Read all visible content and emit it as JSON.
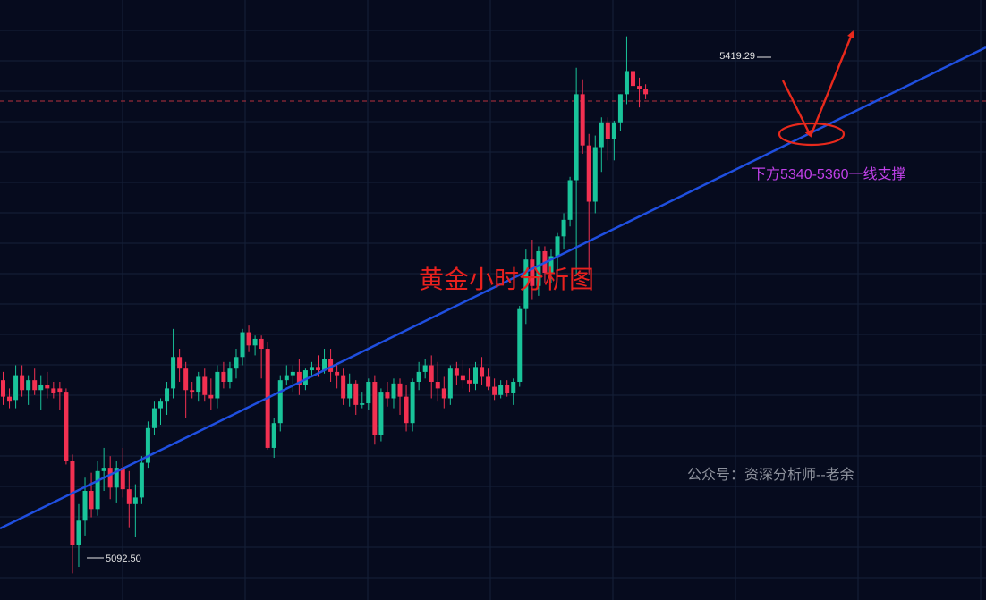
{
  "chart_data": {
    "type": "candlestick",
    "title": "黄金小时分析图",
    "annotation": "下方5340-5360一线支撑",
    "watermark_text": "公众号：资深分析师--老余",
    "max_label": "5419.29",
    "min_label": "5092.50",
    "ylim": [
      5078,
      5441
    ],
    "reference_price": 5391,
    "colors": {
      "background": "#060b1e",
      "grid": "#152039",
      "up": "#19c49a",
      "down": "#f23051",
      "trendline": "#1f4fe0",
      "arrows": "#e8291c",
      "reference_line": "#b8323f",
      "title": "#e8211e",
      "annotation": "#c040e8",
      "watermark": "#8d919c"
    },
    "candles": [
      [
        5211,
        5216,
        5196,
        5201
      ],
      [
        5201,
        5206,
        5194,
        5198
      ],
      [
        5199,
        5220,
        5194,
        5214
      ],
      [
        5214,
        5220,
        5201,
        5205
      ],
      [
        5205,
        5214,
        5196,
        5211
      ],
      [
        5211,
        5218,
        5202,
        5205
      ],
      [
        5205,
        5214,
        5193,
        5208
      ],
      [
        5208,
        5216,
        5200,
        5206
      ],
      [
        5206,
        5210,
        5200,
        5203
      ],
      [
        5206,
        5210,
        5193,
        5204
      ],
      [
        5204,
        5206,
        5160,
        5162
      ],
      [
        5162,
        5166,
        5094,
        5111
      ],
      [
        5111,
        5136,
        5098,
        5126
      ],
      [
        5126,
        5152,
        5117,
        5144
      ],
      [
        5144,
        5155,
        5128,
        5133
      ],
      [
        5133,
        5162,
        5129,
        5156
      ],
      [
        5156,
        5170,
        5144,
        5158
      ],
      [
        5158,
        5165,
        5139,
        5146
      ],
      [
        5146,
        5162,
        5137,
        5158
      ],
      [
        5158,
        5170,
        5140,
        5145
      ],
      [
        5145,
        5156,
        5122,
        5136
      ],
      [
        5136,
        5148,
        5116,
        5140
      ],
      [
        5140,
        5165,
        5136,
        5161
      ],
      [
        5161,
        5186,
        5158,
        5182
      ],
      [
        5182,
        5198,
        5178,
        5194
      ],
      [
        5194,
        5200,
        5184,
        5198
      ],
      [
        5198,
        5210,
        5190,
        5206
      ],
      [
        5206,
        5242,
        5200,
        5225
      ],
      [
        5225,
        5230,
        5210,
        5218
      ],
      [
        5218,
        5222,
        5188,
        5205
      ],
      [
        5205,
        5210,
        5200,
        5204
      ],
      [
        5204,
        5216,
        5198,
        5213
      ],
      [
        5213,
        5218,
        5198,
        5202
      ],
      [
        5202,
        5212,
        5193,
        5200
      ],
      [
        5200,
        5220,
        5194,
        5216
      ],
      [
        5216,
        5222,
        5206,
        5210
      ],
      [
        5210,
        5222,
        5206,
        5218
      ],
      [
        5218,
        5230,
        5212,
        5225
      ],
      [
        5225,
        5242,
        5220,
        5240
      ],
      [
        5240,
        5244,
        5228,
        5232
      ],
      [
        5232,
        5238,
        5226,
        5236
      ],
      [
        5236,
        5238,
        5212,
        5230
      ],
      [
        5230,
        5234,
        5169,
        5170
      ],
      [
        5170,
        5188,
        5164,
        5185
      ],
      [
        5185,
        5214,
        5180,
        5211
      ],
      [
        5211,
        5220,
        5208,
        5214
      ],
      [
        5214,
        5220,
        5204,
        5216
      ],
      [
        5216,
        5224,
        5202,
        5208
      ],
      [
        5208,
        5218,
        5205,
        5217
      ],
      [
        5217,
        5222,
        5214,
        5219
      ],
      [
        5219,
        5226,
        5213,
        5217
      ],
      [
        5217,
        5230,
        5215,
        5224
      ],
      [
        5224,
        5230,
        5210,
        5216
      ],
      [
        5216,
        5220,
        5206,
        5214
      ],
      [
        5214,
        5218,
        5196,
        5200
      ],
      [
        5200,
        5215,
        5195,
        5209
      ],
      [
        5209,
        5211,
        5190,
        5196
      ],
      [
        5196,
        5204,
        5194,
        5197
      ],
      [
        5197,
        5212,
        5193,
        5210
      ],
      [
        5210,
        5214,
        5172,
        5178
      ],
      [
        5178,
        5206,
        5174,
        5204
      ],
      [
        5204,
        5210,
        5195,
        5200
      ],
      [
        5200,
        5212,
        5194,
        5209
      ],
      [
        5209,
        5212,
        5190,
        5201
      ],
      [
        5201,
        5208,
        5180,
        5185
      ],
      [
        5185,
        5212,
        5180,
        5210
      ],
      [
        5210,
        5222,
        5205,
        5216
      ],
      [
        5216,
        5224,
        5212,
        5220
      ],
      [
        5220,
        5226,
        5200,
        5210
      ],
      [
        5210,
        5222,
        5198,
        5206
      ],
      [
        5206,
        5213,
        5194,
        5200
      ],
      [
        5200,
        5220,
        5196,
        5218
      ],
      [
        5218,
        5222,
        5208,
        5214
      ],
      [
        5214,
        5223,
        5206,
        5211
      ],
      [
        5211,
        5218,
        5204,
        5209
      ],
      [
        5209,
        5222,
        5205,
        5219
      ],
      [
        5219,
        5225,
        5208,
        5213
      ],
      [
        5213,
        5218,
        5205,
        5207
      ],
      [
        5207,
        5212,
        5199,
        5202
      ],
      [
        5202,
        5211,
        5200,
        5208
      ],
      [
        5208,
        5211,
        5201,
        5203
      ],
      [
        5203,
        5212,
        5196,
        5210
      ],
      [
        5210,
        5256,
        5207,
        5254
      ],
      [
        5254,
        5290,
        5245,
        5284
      ],
      [
        5284,
        5296,
        5260,
        5268
      ],
      [
        5268,
        5292,
        5262,
        5289
      ],
      [
        5289,
        5292,
        5270,
        5276
      ],
      [
        5276,
        5290,
        5270,
        5286
      ],
      [
        5286,
        5300,
        5274,
        5298
      ],
      [
        5298,
        5312,
        5290,
        5308
      ],
      [
        5308,
        5334,
        5304,
        5332
      ],
      [
        5332,
        5400,
        5274,
        5384
      ],
      [
        5384,
        5393,
        5348,
        5353
      ],
      [
        5353,
        5360,
        5275,
        5319
      ],
      [
        5319,
        5359,
        5312,
        5352
      ],
      [
        5352,
        5370,
        5337,
        5367
      ],
      [
        5367,
        5370,
        5344,
        5357
      ],
      [
        5357,
        5368,
        5344,
        5367
      ],
      [
        5367,
        5384,
        5362,
        5384
      ],
      [
        5384,
        5419,
        5378,
        5398
      ],
      [
        5398,
        5412,
        5384,
        5389
      ],
      [
        5389,
        5394,
        5376,
        5387
      ],
      [
        5387,
        5390,
        5381,
        5384
      ]
    ]
  }
}
